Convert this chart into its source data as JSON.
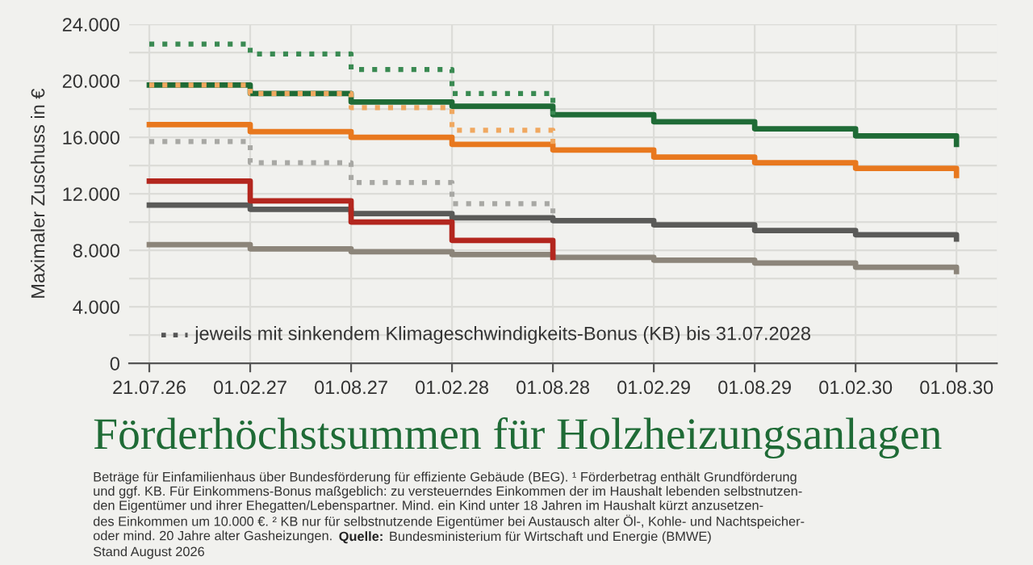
{
  "chart_data": {
    "type": "step",
    "title": "Förderhöchstsummen für Holzheizungsanlagen",
    "ylabel": "Maximaler Zuschuss in €",
    "categories": [
      "21.07.26",
      "01.02.27",
      "01.08.27",
      "01.02.28",
      "01.08.28",
      "01.02.29",
      "01.08.29",
      "01.02.30",
      "01.08.30"
    ],
    "series": [
      {
        "color": "#1f6b36",
        "values": [
          19700,
          19100,
          18500,
          18200,
          17600,
          17100,
          16600,
          16100,
          15500
        ]
      },
      {
        "color": "#e8781e",
        "values": [
          16900,
          16400,
          16000,
          15500,
          15100,
          14600,
          14200,
          13800,
          13300
        ]
      },
      {
        "color": "#5a5a58",
        "values": [
          11200,
          10900,
          10600,
          10300,
          10100,
          9800,
          9400,
          9100,
          8800
        ]
      },
      {
        "color": "#8c857a",
        "values": [
          8400,
          8100,
          7900,
          7700,
          7500,
          7300,
          7100,
          6800,
          6500
        ]
      },
      {
        "color": "#b3261e",
        "values": [
          12900,
          11500,
          10000,
          8700,
          7500,
          null,
          null,
          null,
          null
        ]
      },
      {
        "color": "#3a8a52",
        "line_style": "dotted",
        "values": [
          22600,
          21900,
          20800,
          19100,
          17600,
          null,
          null,
          null,
          null
        ]
      },
      {
        "color": "#f0a860",
        "line_style": "dotted",
        "values": [
          19700,
          19100,
          18100,
          16500,
          15100,
          null,
          null,
          null,
          null
        ]
      },
      {
        "color": "#a8a8a4",
        "line_style": "dotted",
        "values": [
          15700,
          14200,
          12800,
          11300,
          10100,
          null,
          null,
          null,
          null
        ]
      }
    ],
    "ylim": [
      0,
      24000
    ],
    "yticks": [
      0,
      {
        "value": 2000,
        "label": null
      },
      {
        "value": 4000,
        "label": "4.000"
      },
      {
        "value": 6000,
        "label": null
      },
      {
        "value": 8000,
        "label": "8.000"
      },
      {
        "value": 10000,
        "label": null
      },
      {
        "value": 12000,
        "label": "12.000"
      },
      {
        "value": 14000,
        "label": null
      },
      {
        "value": 16000,
        "label": "16.000"
      },
      {
        "value": 18000,
        "label": null
      },
      {
        "value": 20000,
        "label": "20.000"
      },
      {
        "value": 22000,
        "label": null
      },
      {
        "value": 24000,
        "label": "24.000"
      }
    ],
    "grid": true,
    "annotations": [
      "jeweils mit sinkendem Klimageschwindigkeits-Bonus (KB) bis 31.07.2028",
      "Beträge für Einfamilienhaus über Bundesförderung für effiziente Gebäude (BEG). ¹ Förderbetrag enthält Grundförderung\nund ggf. KB. Für Einkommens-Bonus maßgeblich: zu versteuerndes Einkommen der im Haushalt lebenden selbstnutzen-\nden Eigentümer und ihrer Ehegatten/Lebenspartner. Mind. ein Kind unter 18 Jahren im Haushalt kürzt anzusetzen-\ndes Einkommen um 10.000 €. ² KB nur für selbstnutzende Eigentümer bei Austausch alter Öl-, Kohle- und Nachtspeicher-\noder mind. 20 Jahre alter Gasheizungen.",
      "Quelle:",
      "Bundesministerium für Wirtschaft und Energie (BMWE)",
      "Stand August 2026"
    ]
  }
}
